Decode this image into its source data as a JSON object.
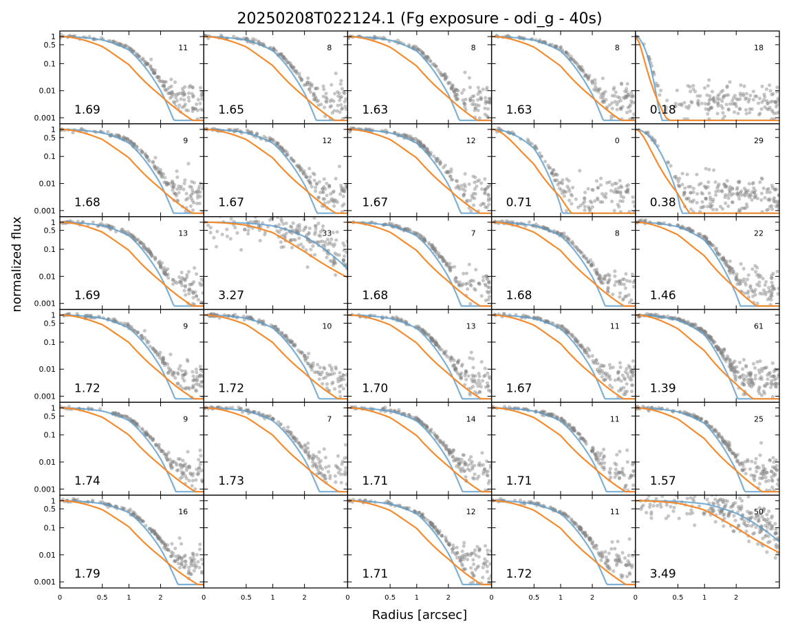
{
  "chart_data": {
    "type": "scatter",
    "title": "20250208T022124.1 (Fg exposure - odi_g - 40s)",
    "xlabel": "Radius [arcsec]",
    "ylabel": "normalized flux",
    "grid": false,
    "yscale": "log",
    "ylim": [
      0.0008,
      1.2
    ],
    "yticks": [
      1,
      0.5,
      0.1,
      0.01,
      0.001
    ],
    "ytick_labels": [
      "1",
      "0.5",
      "0.1",
      "0.01",
      "0.001"
    ],
    "xticks": [
      0,
      0.5,
      1,
      2
    ],
    "xtick_labels": [
      "0",
      "0.5",
      "1",
      "2"
    ],
    "xlim": [
      0,
      3.6
    ],
    "series_colors": {
      "stars": "#808080",
      "model_blue": "#5b9bc9",
      "model_orange": "#f58a2c"
    },
    "grid_rows": 6,
    "grid_cols": 5,
    "panels": [
      {
        "fwhm": "1.69",
        "count": "11"
      },
      {
        "fwhm": "1.65",
        "count": "8"
      },
      {
        "fwhm": "1.63",
        "count": "8"
      },
      {
        "fwhm": "1.63",
        "count": "8"
      },
      {
        "fwhm": "0.18",
        "count": "18"
      },
      {
        "fwhm": "1.68",
        "count": "9"
      },
      {
        "fwhm": "1.67",
        "count": "12"
      },
      {
        "fwhm": "1.67",
        "count": "12"
      },
      {
        "fwhm": "0.71",
        "count": "0"
      },
      {
        "fwhm": "0.38",
        "count": "29"
      },
      {
        "fwhm": "1.69",
        "count": "13"
      },
      {
        "fwhm": "3.27",
        "count": "33"
      },
      {
        "fwhm": "1.68",
        "count": "7"
      },
      {
        "fwhm": "1.68",
        "count": "8"
      },
      {
        "fwhm": "1.46",
        "count": "22"
      },
      {
        "fwhm": "1.72",
        "count": "9"
      },
      {
        "fwhm": "1.72",
        "count": "10"
      },
      {
        "fwhm": "1.70",
        "count": "13"
      },
      {
        "fwhm": "1.67",
        "count": "11"
      },
      {
        "fwhm": "1.39",
        "count": "61"
      },
      {
        "fwhm": "1.74",
        "count": "9"
      },
      {
        "fwhm": "1.73",
        "count": "7"
      },
      {
        "fwhm": "1.71",
        "count": "14"
      },
      {
        "fwhm": "1.71",
        "count": "11"
      },
      {
        "fwhm": "1.57",
        "count": "25"
      },
      {
        "fwhm": "1.79",
        "count": "16"
      },
      {
        "fwhm": "",
        "count": ""
      },
      {
        "fwhm": "1.71",
        "count": "12"
      },
      {
        "fwhm": "1.72",
        "count": "11"
      },
      {
        "fwhm": "3.49",
        "count": "50"
      }
    ]
  }
}
